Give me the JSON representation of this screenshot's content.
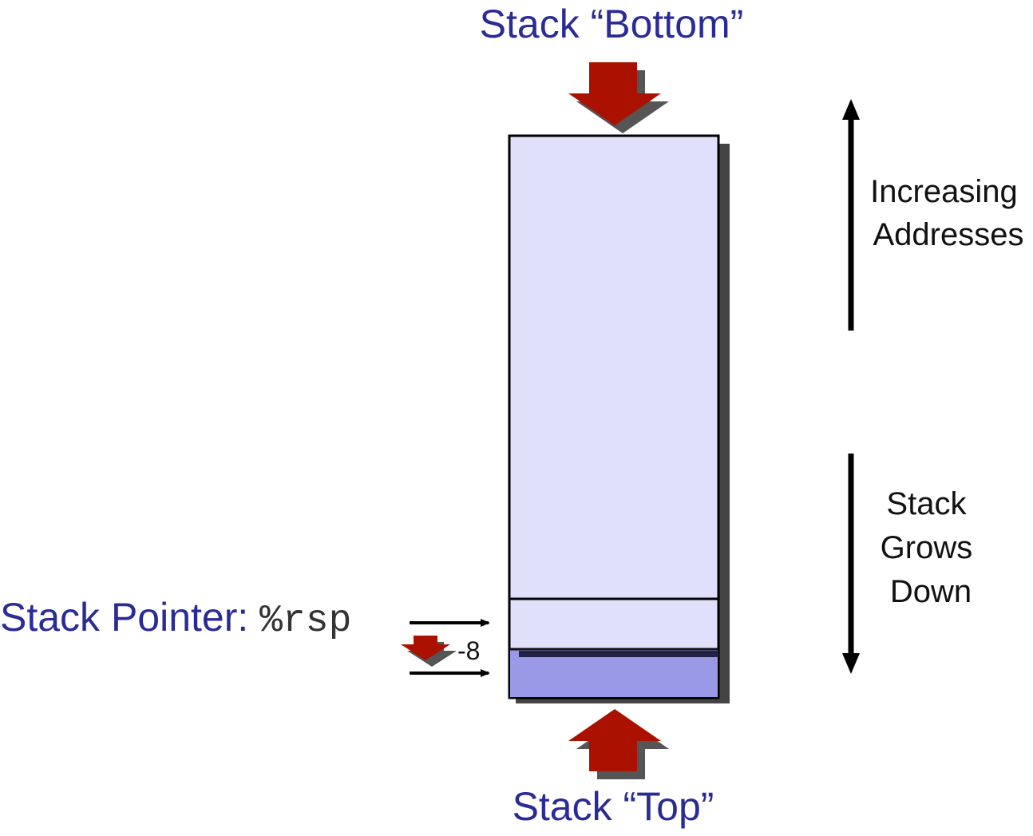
{
  "labels": {
    "stack_bottom": "Stack “Bottom”",
    "stack_top": "Stack “Top”",
    "stack_pointer_prefix": "Stack Pointer: ",
    "stack_pointer_register": "%rsp",
    "pointer_delta": "-8",
    "increasing_addresses_line1": "Increasing",
    "increasing_addresses_line2": "Addresses",
    "stack_grows_line1": "Stack",
    "stack_grows_line2": "Grows",
    "stack_grows_line3": "Down"
  },
  "colors": {
    "stack_fill": "#e0e0fa",
    "new_slot_fill": "#9999e8",
    "arrow_red": "#aa1100",
    "shadow": "#555555",
    "title_blue": "#2b2b96"
  }
}
